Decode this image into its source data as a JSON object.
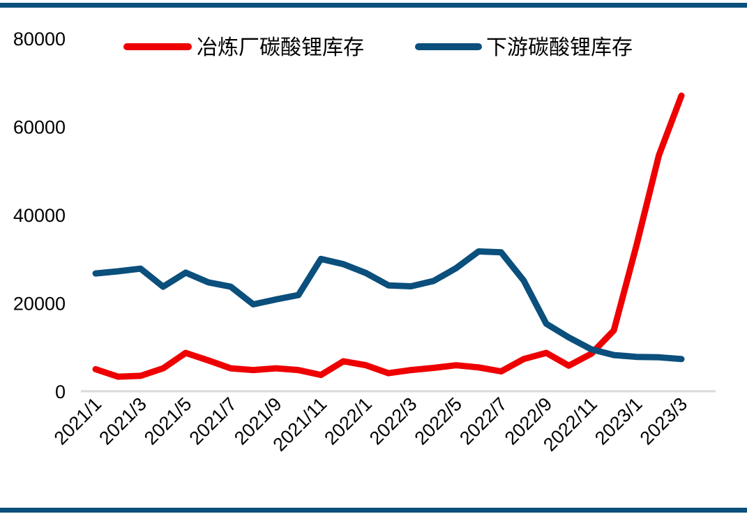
{
  "chart_data": {
    "type": "line",
    "title": "",
    "xlabel": "",
    "ylabel": "",
    "ylim": [
      0,
      80000
    ],
    "yticks": [
      0,
      20000,
      40000,
      60000,
      80000
    ],
    "categories": [
      "2021/1",
      "2021/2",
      "2021/3",
      "2021/4",
      "2021/5",
      "2021/6",
      "2021/7",
      "2021/8",
      "2021/9",
      "2021/10",
      "2021/11",
      "2021/12",
      "2022/1",
      "2022/2",
      "2022/3",
      "2022/4",
      "2022/5",
      "2022/6",
      "2022/7",
      "2022/8",
      "2022/9",
      "2022/10",
      "2022/11",
      "2022/12",
      "2023/1",
      "2023/2",
      "2023/3"
    ],
    "tick_labels": [
      "2021/1",
      "2021/3",
      "2021/5",
      "2021/7",
      "2021/9",
      "2021/11",
      "2022/1",
      "2022/3",
      "2022/5",
      "2022/7",
      "2022/9",
      "2022/11",
      "2023/1",
      "2023/3"
    ],
    "grid": false,
    "legend_position": "top",
    "series": [
      {
        "name": "冶炼厂碳酸锂库存",
        "color": "#ee0000",
        "values": [
          5000,
          3300,
          3500,
          5200,
          8700,
          7000,
          5200,
          4800,
          5200,
          4800,
          3700,
          6800,
          5900,
          4100,
          4800,
          5300,
          5900,
          5400,
          4500,
          7300,
          8700,
          5800,
          8500,
          13800,
          33000,
          53500,
          67000
        ]
      },
      {
        "name": "下游碳酸锂库存",
        "color": "#0b4f7c",
        "values": [
          26700,
          27200,
          27800,
          23700,
          26900,
          24700,
          23700,
          19700,
          20800,
          21800,
          30000,
          28800,
          26800,
          24000,
          23800,
          25000,
          27900,
          31700,
          31500,
          25100,
          15300,
          12200,
          9500,
          8200,
          7800,
          7700,
          7300
        ]
      }
    ]
  }
}
